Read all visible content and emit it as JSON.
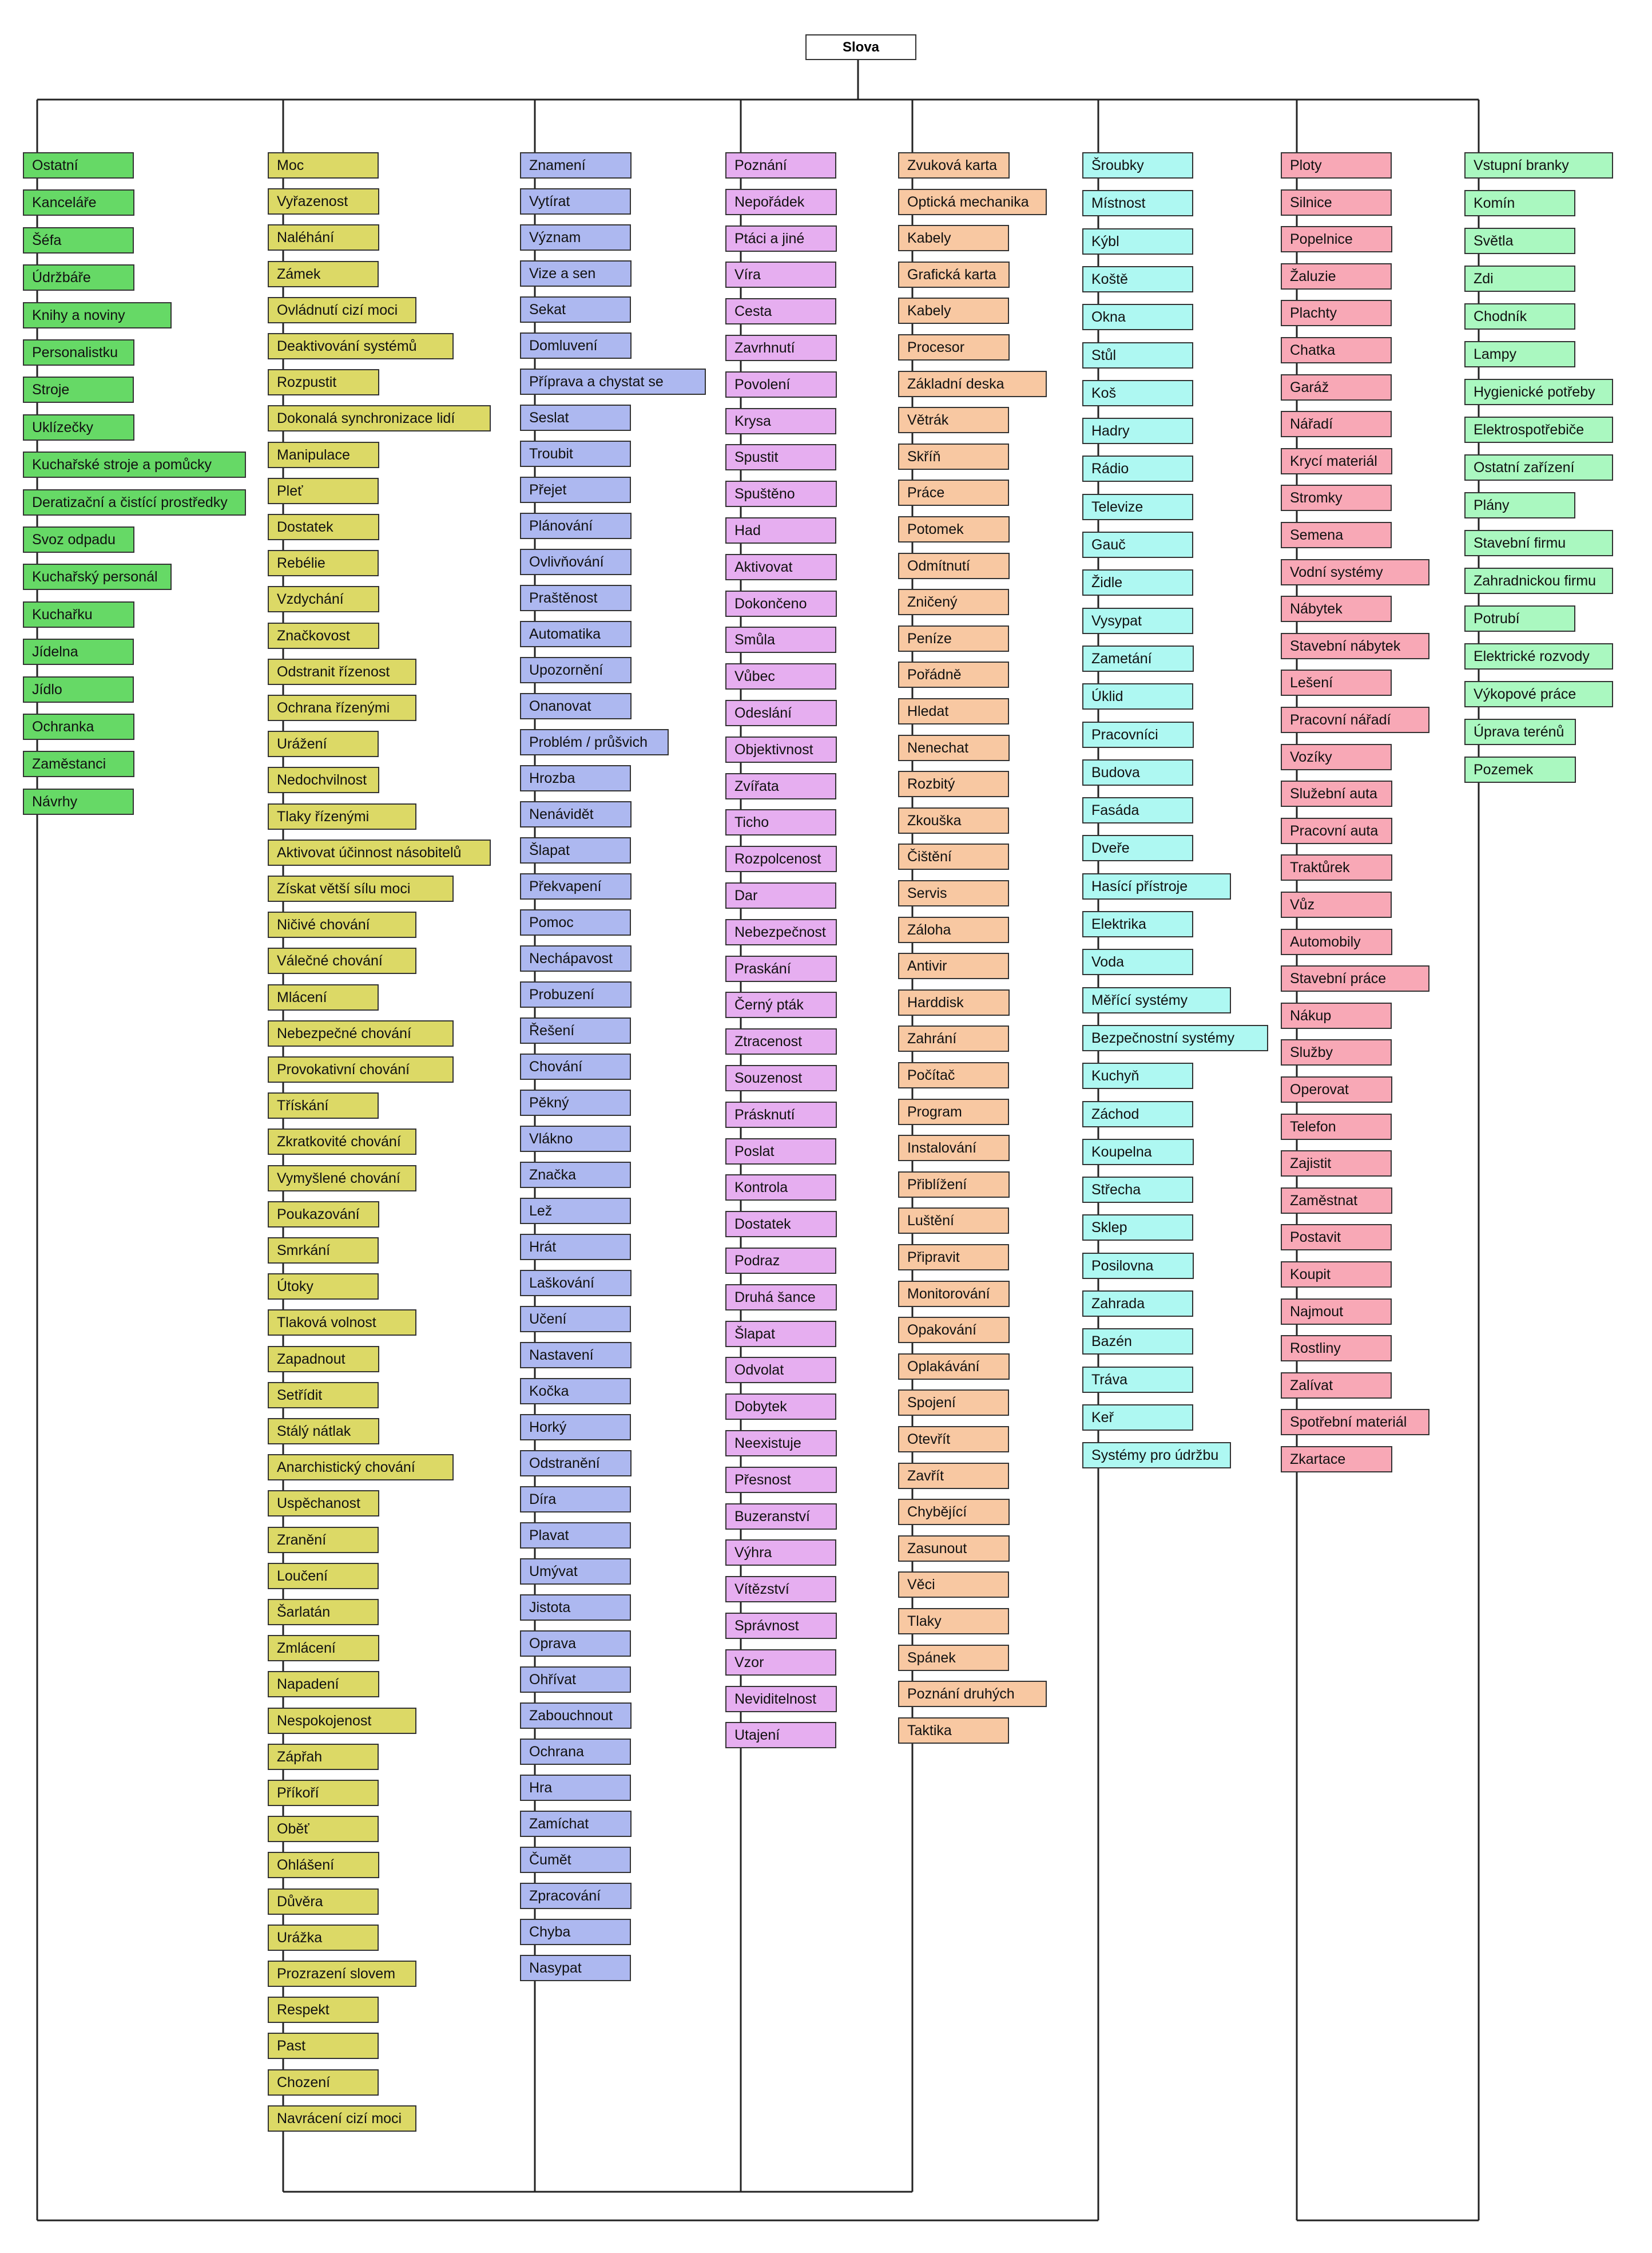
{
  "root": "Slova",
  "colors": [
    "#66d966",
    "#dcd966",
    "#adb8f0",
    "#e6aef0",
    "#f8c8a2",
    "#aef8f2",
    "#f8a8b6",
    "#aaf8c0"
  ],
  "columns": [
    [
      "Ostatní",
      "Kanceláře",
      "Šéfa",
      "Údržbáře",
      "Knihy a noviny",
      "Personalistku",
      "Stroje",
      "Uklízečky",
      "Kuchařské stroje a pomůcky",
      "Deratizační a čistící prostředky",
      "Svoz odpadu",
      "Kuchařský personál",
      "Kuchařku",
      "Jídelna",
      "Jídlo",
      "Ochranka",
      "Zaměstanci",
      "Návrhy"
    ],
    [
      "Moc",
      "Vyřazenost",
      "Naléhání",
      "Zámek",
      "Ovládnutí cizí moci",
      "Deaktivování systémů",
      "Rozpustit",
      "Dokonalá synchronizace lidí",
      "Manipulace",
      "Pleť",
      "Dostatek",
      "Rebélie",
      "Vzdychání",
      "Značkovost",
      "Odstranit řízenost",
      "Ochrana řízenými",
      "Urážení",
      "Nedochvilnost",
      "Tlaky řízenými",
      "Aktivovat účinnost násobitelů",
      "Získat větší sílu moci",
      "Ničivé chování",
      "Válečné chování",
      "Mlácení",
      "Nebezpečné chování",
      "Provokativní chování",
      "Třískání",
      "Zkratkovité chování",
      "Vymyšlené chování",
      "Poukazování",
      "Smrkání",
      "Útoky",
      "Tlaková volnost",
      "Zapadnout",
      "Setřídit",
      "Stálý nátlak",
      "Anarchistický chování",
      "Uspěchanost",
      "Zranění",
      "Loučení",
      "Šarlatán",
      "Zmlácení",
      "Napadení",
      "Nespokojenost",
      "Zápřah",
      "Příkoří",
      "Oběť",
      "Ohlášení",
      "Důvěra",
      "Urážka",
      "Prozrazení slovem",
      "Respekt",
      "Past",
      "Chození",
      "Navrácení cizí moci"
    ],
    [
      "Znamení",
      "Vytírat",
      "Význam",
      "Vize a sen",
      "Sekat",
      "Domluvení",
      "Příprava a chystat se",
      "Seslat",
      "Troubit",
      "Přejet",
      "Plánování",
      "Ovlivňování",
      "Praštěnost",
      "Automatika",
      "Upozornění",
      "Onanovat",
      "Problém / průšvich",
      "Hrozba",
      "Nenávidět",
      "Šlapat",
      "Překvapení",
      "Pomoc",
      "Nechápavost",
      "Probuzení",
      "Řešení",
      "Chování",
      "Pěkný",
      "Vlákno",
      "Značka",
      "Lež",
      "Hrát",
      "Laškování",
      "Učení",
      "Nastavení",
      "Kočka",
      "Horký",
      "Odstranění",
      "Díra",
      "Plavat",
      "Umývat",
      "Jistota",
      "Oprava",
      "Ohřívat",
      "Zabouchnout",
      "Ochrana",
      "Hra",
      "Zamíchat",
      "Čumět",
      "Zpracování",
      "Chyba",
      "Nasypat"
    ],
    [
      "Poznání",
      "Nepořádek",
      "Ptáci a jiné",
      "Víra",
      "Cesta",
      "Zavrhnutí",
      "Povolení",
      "Krysa",
      "Spustit",
      "Spuštěno",
      "Had",
      "Aktivovat",
      "Dokončeno",
      "Smůla",
      "Vůbec",
      "Odeslání",
      "Objektivnost",
      "Zvířata",
      "Ticho",
      "Rozpolcenost",
      "Dar",
      "Nebezpečnost",
      "Praskání",
      "Černý pták",
      "Ztracenost",
      "Souzenost",
      "Prásknutí",
      "Poslat",
      "Kontrola",
      "Dostatek",
      "Podraz",
      "Druhá šance",
      "Šlapat",
      "Odvolat",
      "Dobytek",
      "Neexistuje",
      "Přesnost",
      "Buzeranství",
      "Výhra",
      "Vítězství",
      "Správnost",
      "Vzor",
      "Neviditelnost",
      "Utajení"
    ],
    [
      "Zvuková karta",
      "Optická mechanika",
      "Kabely",
      "Grafická karta",
      "Kabely",
      "Procesor",
      "Základní deska",
      "Větrák",
      "Skříň",
      "Práce",
      "Potomek",
      "Odmítnutí",
      "Zničený",
      "Peníze",
      "Pořádně",
      "Hledat",
      "Nenechat",
      "Rozbitý",
      "Zkouška",
      "Čištění",
      "Servis",
      "Záloha",
      "Antivir",
      "Harddisk",
      "Zahrání",
      "Počítač",
      "Program",
      "Instalování",
      "Přiblížení",
      "Luštění",
      "Připravit",
      "Monitorování",
      "Opakování",
      "Oplakávání",
      "Spojení",
      "Otevřít",
      "Zavřít",
      "Chybějící",
      "Zasunout",
      "Věci",
      "Tlaky",
      "Spánek",
      "Poznání druhých",
      "Taktika"
    ],
    [
      "Šroubky",
      "Místnost",
      "Kýbl",
      "Koště",
      "Okna",
      "Stůl",
      "Koš",
      "Hadry",
      "Rádio",
      "Televize",
      "Gauč",
      "Židle",
      "Vysypat",
      "Zametání",
      "Úklid",
      "Pracovníci",
      "Budova",
      "Fasáda",
      "Dveře",
      "Hasící přístroje",
      "Elektrika",
      "Voda",
      "Měřící systémy",
      "Bezpečnostní systémy",
      "Kuchyň",
      "Záchod",
      "Koupelna",
      "Střecha",
      "Sklep",
      "Posilovna",
      "Zahrada",
      "Bazén",
      "Tráva",
      "Keř",
      "Systémy pro údržbu"
    ],
    [
      "Ploty",
      "Silnice",
      "Popelnice",
      "Žaluzie",
      "Plachty",
      "Chatka",
      "Garáž",
      "Nářadí",
      "Krycí materiál",
      "Stromky",
      "Semena",
      "Vodní systémy",
      "Nábytek",
      "Stavební nábytek",
      "Lešení",
      "Pracovní nářadí",
      "Vozíky",
      "Služební auta",
      "Pracovní auta",
      "Traktůrek",
      "Vůz",
      "Automobily",
      "Stavební práce",
      "Nákup",
      "Služby",
      "Operovat",
      "Telefon",
      "Zajistit",
      "Zaměstnat",
      "Postavit",
      "Koupit",
      "Najmout",
      "Rostliny",
      "Zalívat",
      "Spotřební materiál",
      "Zkartace"
    ],
    [
      "Vstupní branky",
      "Komín",
      "Světla",
      "Zdi",
      "Chodník",
      "Lampy",
      "Hygienické potřeby",
      "Elektrospotřebiče",
      "Ostatní zařízení",
      "Plány",
      "Stavební firmu",
      "Zahradnickou firmu",
      "Potrubí",
      "Elektrické rozvody",
      "Výkopové práce",
      "Úprava terénů",
      "Pozemek"
    ]
  ]
}
